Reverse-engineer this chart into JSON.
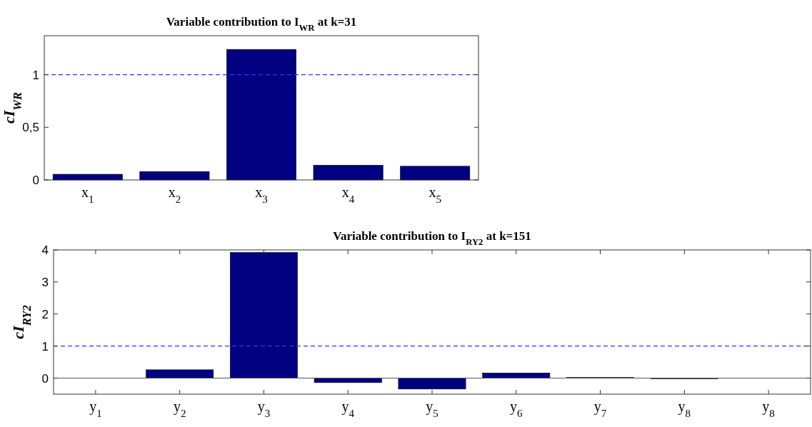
{
  "chart_data": [
    {
      "type": "bar",
      "title": "Variable contribution to I$_{WR}$ at k=31",
      "ylabel": "cI$_{WR}$",
      "categories": [
        "x$_{1}$",
        "x$_{2}$",
        "x$_{3}$",
        "x$_{4}$",
        "x$_{5}$"
      ],
      "values": [
        0.054,
        0.08,
        1.24,
        0.14,
        0.13
      ],
      "color": "#000080",
      "ylim": [
        0,
        1.37
      ],
      "yticks": [
        0,
        {
          "value": 0.5,
          "label": "0,5"
        },
        1
      ],
      "ref_lines": [
        {
          "axis": "y",
          "value": 1,
          "color": "#3333ff",
          "line_style": "dashed"
        }
      ],
      "grid": false
    },
    {
      "type": "bar",
      "title": "Variable contribution to I$_{RY2}$ at k=151",
      "ylabel": "cI$_{RY2}$",
      "categories": [
        "y$_{1}$",
        "y$_{2}$",
        "y$_{3}$",
        "y$_{4}$",
        "y$_{5}$",
        "y$_{6}$",
        "y$_{7}$",
        "y$_{8}$",
        "y$_{8}$"
      ],
      "values": [
        0,
        0.26,
        3.92,
        -0.14,
        -0.34,
        0.16,
        0.02,
        -0.02,
        0
      ],
      "color": "#000080",
      "ylim": [
        -0.5,
        4
      ],
      "yticks": [
        0,
        1,
        2,
        3,
        4
      ],
      "ref_lines": [
        {
          "axis": "y",
          "value": 1,
          "color": "#3333ff",
          "line_style": "dashed"
        }
      ],
      "grid": false
    }
  ]
}
